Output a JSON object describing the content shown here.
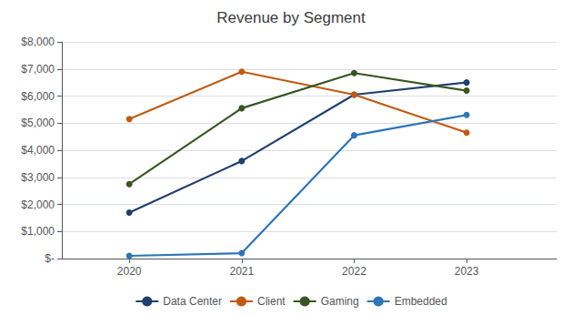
{
  "chart_data": {
    "type": "line",
    "title": "Revenue by Segment",
    "x": [
      2020,
      2021,
      2022,
      2023
    ],
    "xlim": [
      2019.4,
      2023.8
    ],
    "xticks": [
      2020,
      2021,
      2022,
      2023
    ],
    "series": [
      {
        "name": "Data Center",
        "color": "#1f3f6e",
        "marker": "circle",
        "values": [
          1700,
          3600,
          6050,
          6500
        ]
      },
      {
        "name": "Client",
        "color": "#c05a11",
        "marker": "circle",
        "values": [
          5150,
          6900,
          6050,
          4650
        ]
      },
      {
        "name": "Gaming",
        "color": "#375623",
        "marker": "circle",
        "values": [
          2750,
          5550,
          6850,
          6200
        ]
      },
      {
        "name": "Embedded",
        "color": "#2e75b6",
        "marker": "circle",
        "values": [
          100,
          200,
          4550,
          5300
        ]
      }
    ],
    "ylim": [
      0,
      8000
    ],
    "yticks": [
      {
        "value": 0,
        "label": "$-"
      },
      {
        "value": 1000,
        "label": "$1,000"
      },
      {
        "value": 2000,
        "label": "$2,000"
      },
      {
        "value": 3000,
        "label": "$3,000"
      },
      {
        "value": 4000,
        "label": "$4,000"
      },
      {
        "value": 5000,
        "label": "$5,000"
      },
      {
        "value": 6000,
        "label": "$6,000"
      },
      {
        "value": 7000,
        "label": "$7,000"
      },
      {
        "value": 8000,
        "label": "$8,000"
      }
    ],
    "grid": true,
    "legend": "bottom"
  }
}
